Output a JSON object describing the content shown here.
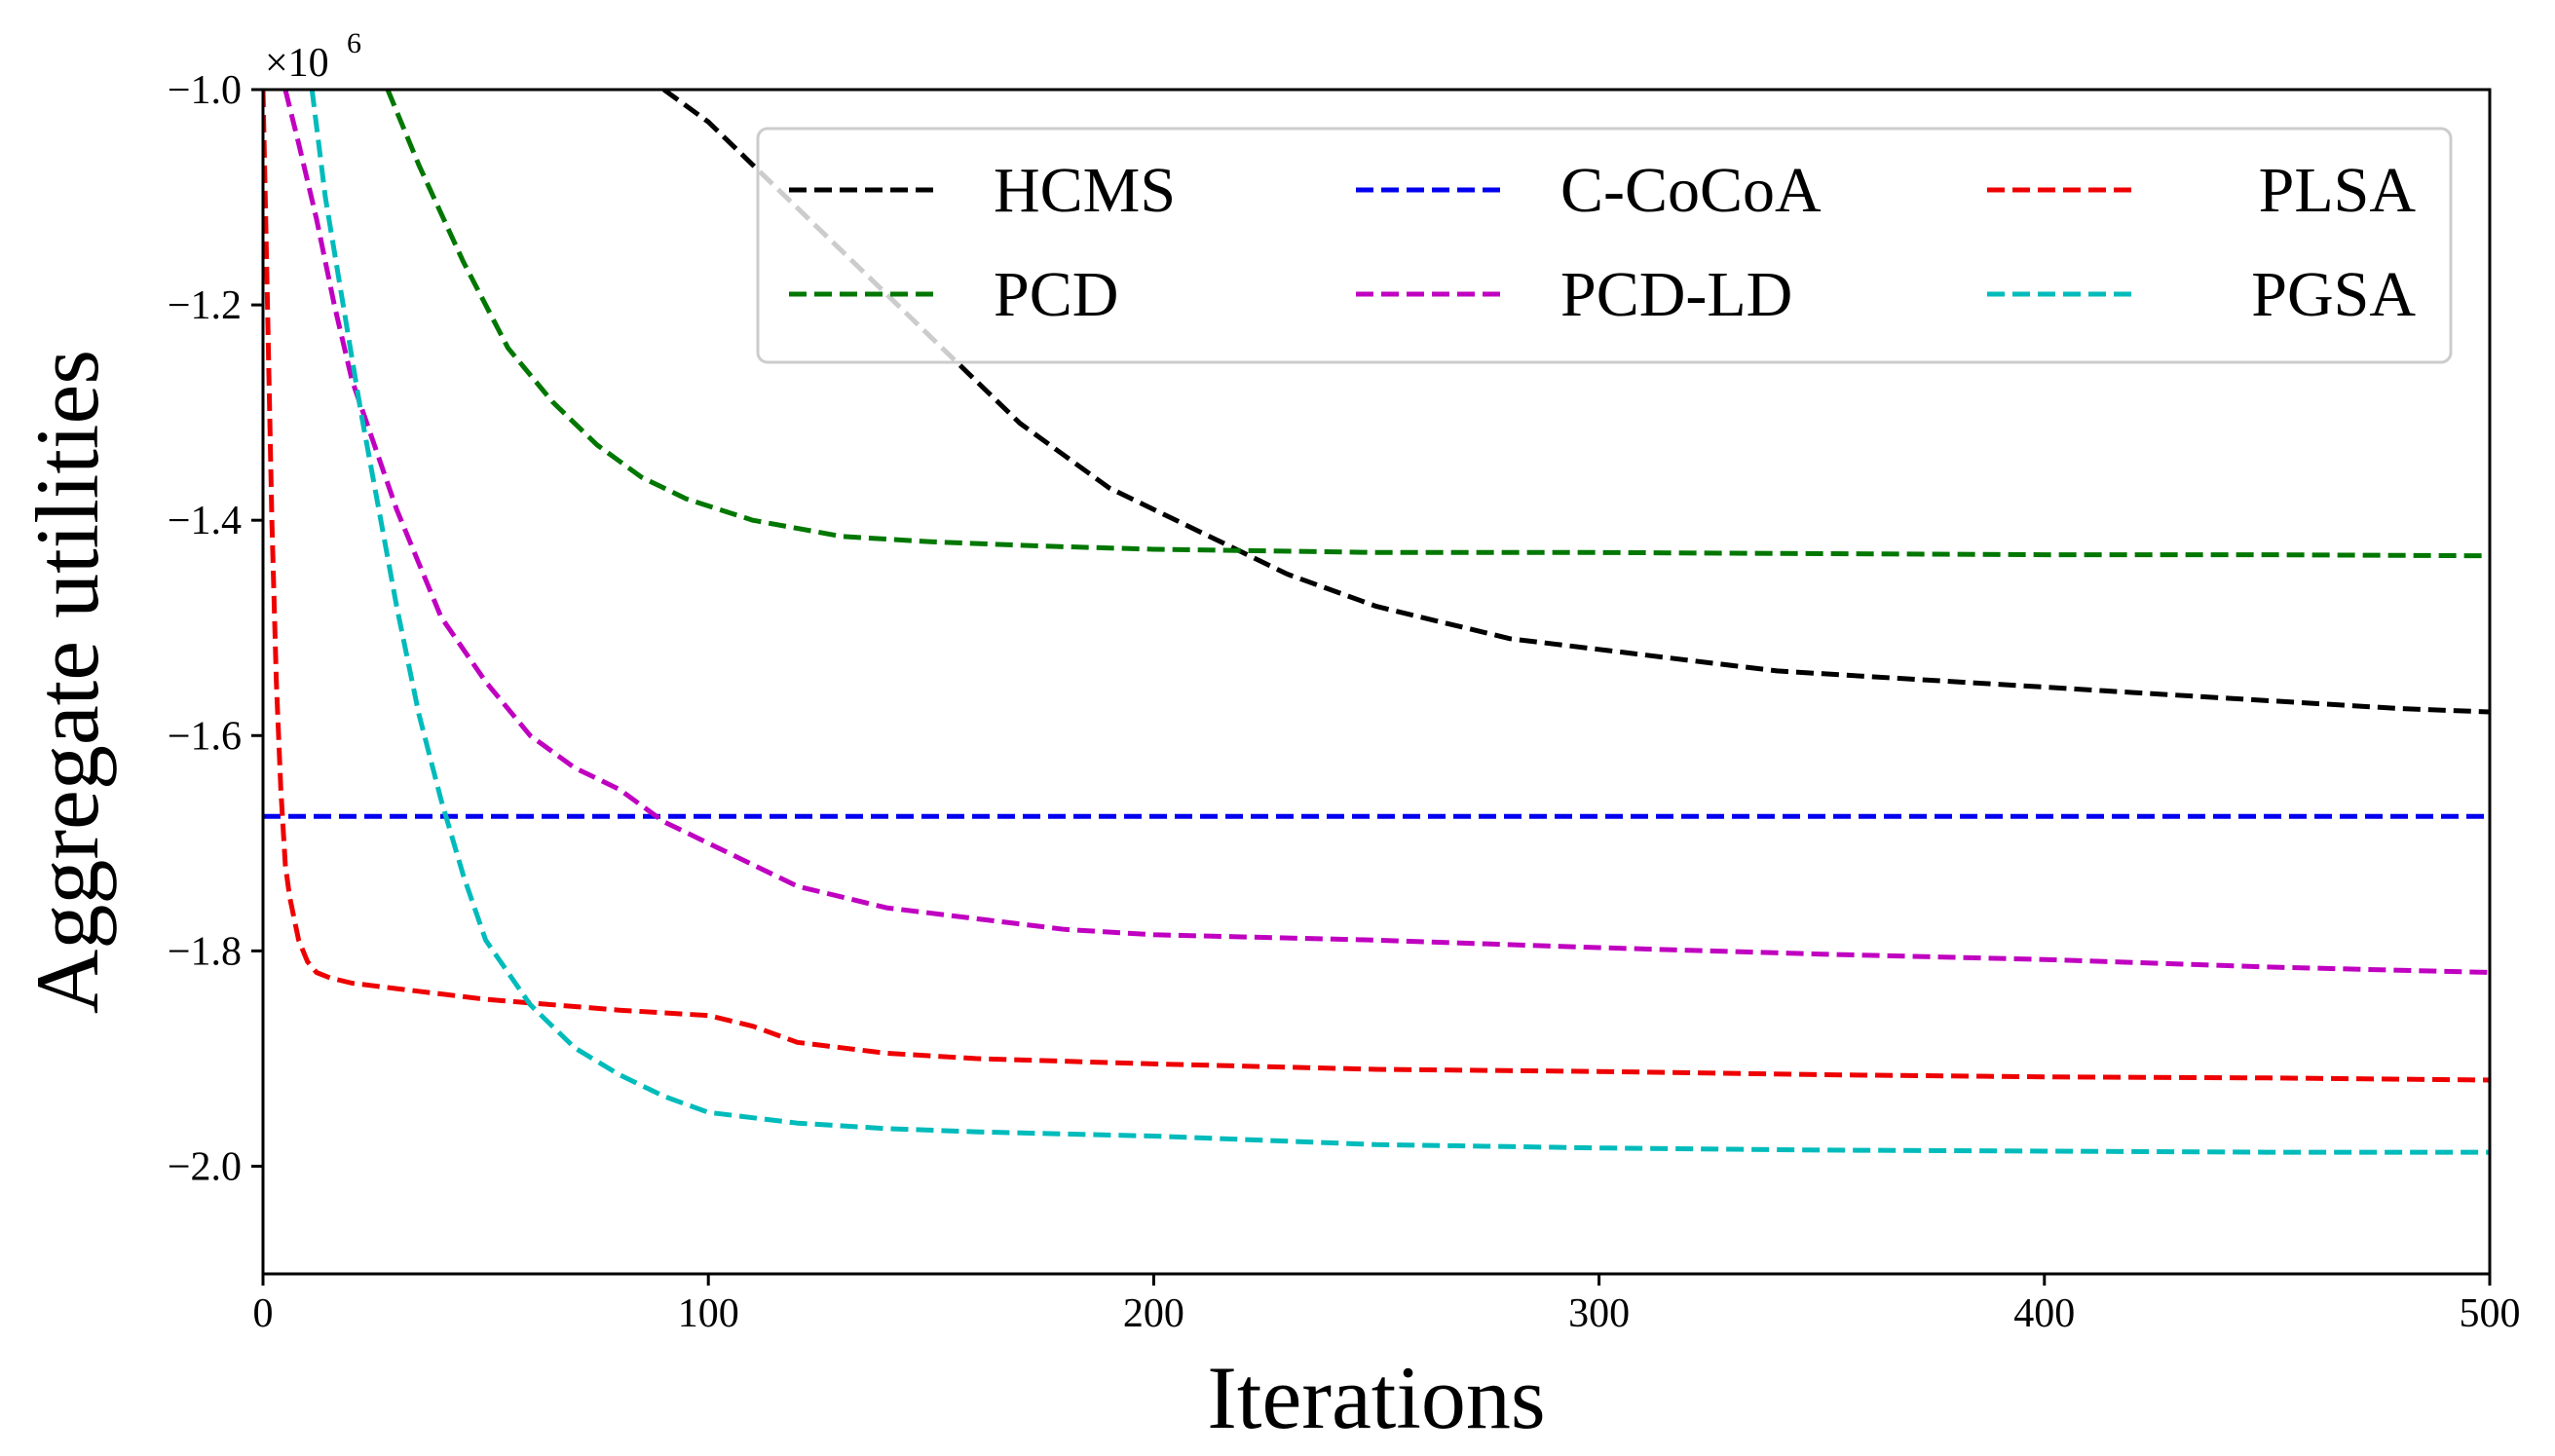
{
  "chart_data": {
    "type": "line",
    "xlabel": "Iterations",
    "ylabel": "Aggregate utilities",
    "y_multiplier": "×10",
    "y_exponent": "6",
    "xlim": [
      0,
      500
    ],
    "ylim": [
      -2.1,
      -1.0
    ],
    "xticks": [
      0,
      100,
      200,
      300,
      400,
      500
    ],
    "xtick_labels": [
      "0",
      "100",
      "200",
      "300",
      "400",
      "500"
    ],
    "yticks": [
      -2.0,
      -1.8,
      -1.6,
      -1.4,
      -1.2,
      -1.0
    ],
    "ytick_labels": [
      "−2.0",
      "−1.8",
      "−1.6",
      "−1.4",
      "−1.2",
      "−1.0"
    ],
    "legend_position": "top-right",
    "legend_columns": 3,
    "line_style": "dashed",
    "series": [
      {
        "name": "HCMS",
        "color": "#000000",
        "x": [
          90,
          100,
          110,
          120,
          130,
          140,
          150,
          160,
          170,
          180,
          190,
          200,
          210,
          220,
          230,
          240,
          250,
          260,
          270,
          280,
          290,
          300,
          320,
          340,
          360,
          380,
          400,
          420,
          440,
          460,
          480,
          500
        ],
        "y": [
          -1.0,
          -1.03,
          -1.07,
          -1.11,
          -1.15,
          -1.19,
          -1.23,
          -1.27,
          -1.31,
          -1.34,
          -1.37,
          -1.39,
          -1.41,
          -1.43,
          -1.45,
          -1.465,
          -1.48,
          -1.49,
          -1.5,
          -1.51,
          -1.515,
          -1.52,
          -1.53,
          -1.54,
          -1.545,
          -1.55,
          -1.555,
          -1.56,
          -1.565,
          -1.57,
          -1.575,
          -1.578
        ]
      },
      {
        "name": "PCD",
        "color": "#007700",
        "x": [
          28,
          35,
          45,
          55,
          65,
          75,
          85,
          95,
          110,
          130,
          150,
          175,
          200,
          250,
          300,
          350,
          400,
          450,
          500
        ],
        "y": [
          -1.0,
          -1.07,
          -1.16,
          -1.24,
          -1.29,
          -1.33,
          -1.36,
          -1.38,
          -1.4,
          -1.415,
          -1.42,
          -1.424,
          -1.427,
          -1.43,
          -1.43,
          -1.431,
          -1.432,
          -1.432,
          -1.433
        ]
      },
      {
        "name": "C-CoCoA",
        "color": "#0000ee",
        "x": [
          0,
          500
        ],
        "y": [
          -1.675,
          -1.675
        ]
      },
      {
        "name": "PCD-LD",
        "color": "#c000c0",
        "x": [
          5,
          8,
          12,
          16,
          20,
          25,
          30,
          35,
          40,
          50,
          60,
          70,
          80,
          90,
          100,
          110,
          120,
          140,
          160,
          180,
          200,
          250,
          300,
          350,
          400,
          450,
          500
        ],
        "y": [
          -1.0,
          -1.05,
          -1.12,
          -1.2,
          -1.27,
          -1.33,
          -1.39,
          -1.44,
          -1.49,
          -1.55,
          -1.6,
          -1.63,
          -1.65,
          -1.68,
          -1.7,
          -1.72,
          -1.74,
          -1.76,
          -1.77,
          -1.78,
          -1.785,
          -1.79,
          -1.797,
          -1.803,
          -1.808,
          -1.815,
          -1.82
        ]
      },
      {
        "name": "PLSA",
        "color": "#ee0000",
        "x": [
          0,
          1,
          2,
          3,
          4,
          5,
          6,
          8,
          10,
          12,
          15,
          20,
          30,
          50,
          80,
          100,
          110,
          120,
          140,
          160,
          200,
          250,
          300,
          350,
          400,
          450,
          500
        ],
        "y": [
          -1.0,
          -1.2,
          -1.4,
          -1.55,
          -1.65,
          -1.72,
          -1.75,
          -1.79,
          -1.81,
          -1.82,
          -1.825,
          -1.83,
          -1.835,
          -1.845,
          -1.855,
          -1.86,
          -1.87,
          -1.885,
          -1.895,
          -1.9,
          -1.905,
          -1.91,
          -1.912,
          -1.915,
          -1.917,
          -1.918,
          -1.92
        ]
      },
      {
        "name": "PGSA",
        "color": "#00bbbb",
        "x": [
          11,
          14,
          18,
          22,
          26,
          30,
          35,
          40,
          45,
          50,
          60,
          70,
          80,
          90,
          100,
          120,
          140,
          160,
          180,
          200,
          250,
          300,
          350,
          400,
          450,
          500
        ],
        "y": [
          -1.0,
          -1.1,
          -1.2,
          -1.3,
          -1.39,
          -1.48,
          -1.58,
          -1.66,
          -1.73,
          -1.79,
          -1.85,
          -1.89,
          -1.915,
          -1.935,
          -1.95,
          -1.96,
          -1.965,
          -1.968,
          -1.97,
          -1.972,
          -1.98,
          -1.983,
          -1.985,
          -1.986,
          -1.987,
          -1.987
        ]
      }
    ]
  }
}
